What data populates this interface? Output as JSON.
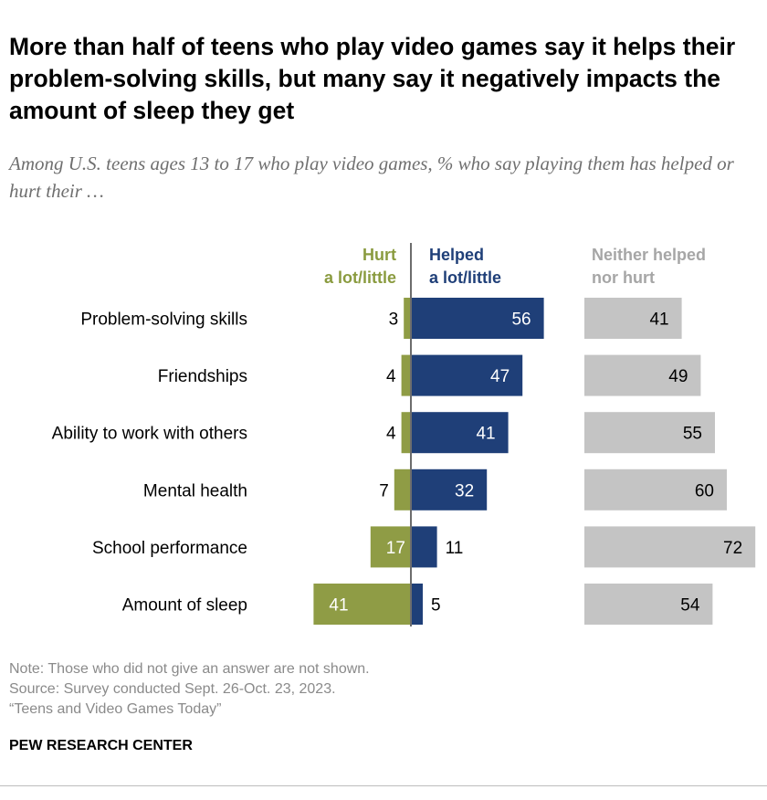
{
  "title": "More than half of teens who play video games say it helps their problem-solving skills, but many say it negatively impacts the amount of sleep they get",
  "subtitle": "Among U.S. teens ages 13 to 17 who play video games, % who say playing them has helped or hurt their …",
  "headers": {
    "hurt": [
      "Hurt",
      "a lot/little"
    ],
    "helped": [
      "Helped",
      "a lot/little"
    ],
    "neither": [
      "Neither helped",
      "nor hurt"
    ]
  },
  "colors": {
    "hurt": "#8f9c45",
    "helped": "#1f3f78",
    "neither": "#c4c4c4",
    "axis": "#6d6d6d"
  },
  "chart_data": {
    "type": "bar",
    "categories": [
      "Problem-solving skills",
      "Friendships",
      "Ability to work with others",
      "Mental health",
      "School performance",
      "Amount of sleep"
    ],
    "series": [
      {
        "name": "Hurt a lot/little",
        "values": [
          3,
          4,
          4,
          7,
          17,
          41
        ]
      },
      {
        "name": "Helped a lot/little",
        "values": [
          56,
          47,
          41,
          32,
          11,
          5
        ]
      },
      {
        "name": "Neither helped nor hurt",
        "values": [
          41,
          49,
          55,
          60,
          72,
          54
        ]
      }
    ]
  },
  "notes": [
    "Note: Those who did not give an answer are not shown.",
    "Source: Survey conducted Sept. 26-Oct. 23, 2023.",
    "“Teens and Video Games Today”"
  ],
  "brand": "PEW RESEARCH CENTER"
}
